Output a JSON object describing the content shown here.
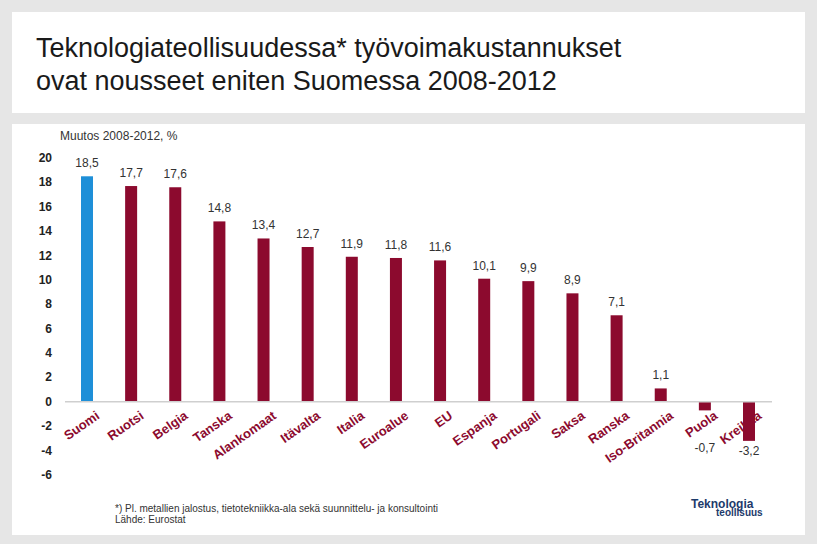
{
  "chart_data": {
    "type": "bar",
    "title": "Teknologiateollisuudessa* työvoimakustannukset\novat nousseet eniten Suomessa 2008-2012",
    "subtitle": "Muutos 2008-2012, %",
    "categories": [
      "Suomi",
      "Ruotsi",
      "Belgia",
      "Tanska",
      "Alankomaat",
      "Itävalta",
      "Italia",
      "Euroalue",
      "EU",
      "Espanja",
      "Portugali",
      "Saksa",
      "Ranska",
      "Iso-Britannia",
      "Puola",
      "Kreikka"
    ],
    "values": [
      18.5,
      17.7,
      17.6,
      14.8,
      13.4,
      12.7,
      11.9,
      11.8,
      11.6,
      10.1,
      9.9,
      8.9,
      7.1,
      1.1,
      -0.7,
      -3.2
    ],
    "value_labels": [
      "18,5",
      "17,7",
      "17,6",
      "14,8",
      "13,4",
      "12,7",
      "11,9",
      "11,8",
      "11,6",
      "10,1",
      "9,9",
      "8,9",
      "7,1",
      "1,1",
      "-0,7",
      "-3,2"
    ],
    "colors": [
      "#1e8fd8",
      "#8c0a2e",
      "#8c0a2e",
      "#8c0a2e",
      "#8c0a2e",
      "#8c0a2e",
      "#8c0a2e",
      "#8c0a2e",
      "#8c0a2e",
      "#8c0a2e",
      "#8c0a2e",
      "#8c0a2e",
      "#8c0a2e",
      "#8c0a2e",
      "#8c0a2e",
      "#8c0a2e"
    ],
    "ylim": [
      -6,
      20
    ],
    "yticks": [
      -6,
      -4,
      -2,
      0,
      2,
      4,
      6,
      8,
      10,
      12,
      14,
      16,
      18,
      20
    ],
    "grid": false,
    "data_labels": true,
    "footnote": [
      "*) Pl. metallien jalostus, tietotekniikka-ala sekä suunnittelu- ja konsultointi",
      "Lähde: Eurostat"
    ],
    "logo": [
      "Teknologia",
      "teollisuus"
    ]
  }
}
